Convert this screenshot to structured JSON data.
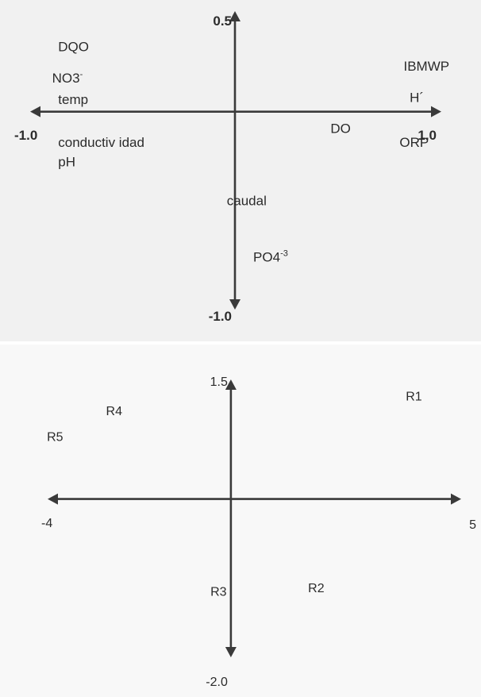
{
  "chart_data": [
    {
      "type": "scatter",
      "xlim": [
        -1.0,
        1.0
      ],
      "ylim": [
        -1.0,
        0.5
      ],
      "x_tick_labels": {
        "min": "-1.0",
        "max": "1.0"
      },
      "y_tick_labels": {
        "min": "-1.0",
        "max": "0.5"
      },
      "labels": [
        {
          "text": "DQO",
          "x": -0.87,
          "y": 0.31
        },
        {
          "text": "NO3",
          "sup": "-",
          "x": -0.9,
          "y": 0.15
        },
        {
          "text": "temp",
          "x": -0.87,
          "y": 0.04
        },
        {
          "text": "conductiv idad",
          "x": -0.87,
          "y": -0.18
        },
        {
          "text": "pH",
          "x": -0.87,
          "y": -0.28
        },
        {
          "text": "IBMWP",
          "x": 0.83,
          "y": 0.21
        },
        {
          "text": "H´",
          "x": 0.86,
          "y": 0.05
        },
        {
          "text": "DO",
          "x": 0.47,
          "y": -0.11
        },
        {
          "text": "ORP",
          "x": 0.81,
          "y": -0.18
        },
        {
          "text": "caudal",
          "x": -0.04,
          "y": -0.48
        },
        {
          "text": "PO4",
          "sup": "-3",
          "x": 0.09,
          "y": -0.77
        }
      ]
    },
    {
      "type": "scatter",
      "xlim": [
        -4,
        5
      ],
      "ylim": [
        -2.0,
        1.5
      ],
      "x_tick_labels": {
        "min": "-4",
        "max": "5"
      },
      "y_tick_labels": {
        "min": "-2.0",
        "max": "1.5"
      },
      "points": [
        {
          "text": "R1",
          "x": 3.85,
          "y": 1.27
        },
        {
          "text": "R2",
          "x": 1.7,
          "y": -1.2
        },
        {
          "text": "R3",
          "x": -0.45,
          "y": -1.25
        },
        {
          "text": "R4",
          "x": -2.75,
          "y": 1.08
        },
        {
          "text": "R5",
          "x": -4.05,
          "y": 0.75
        }
      ]
    }
  ]
}
